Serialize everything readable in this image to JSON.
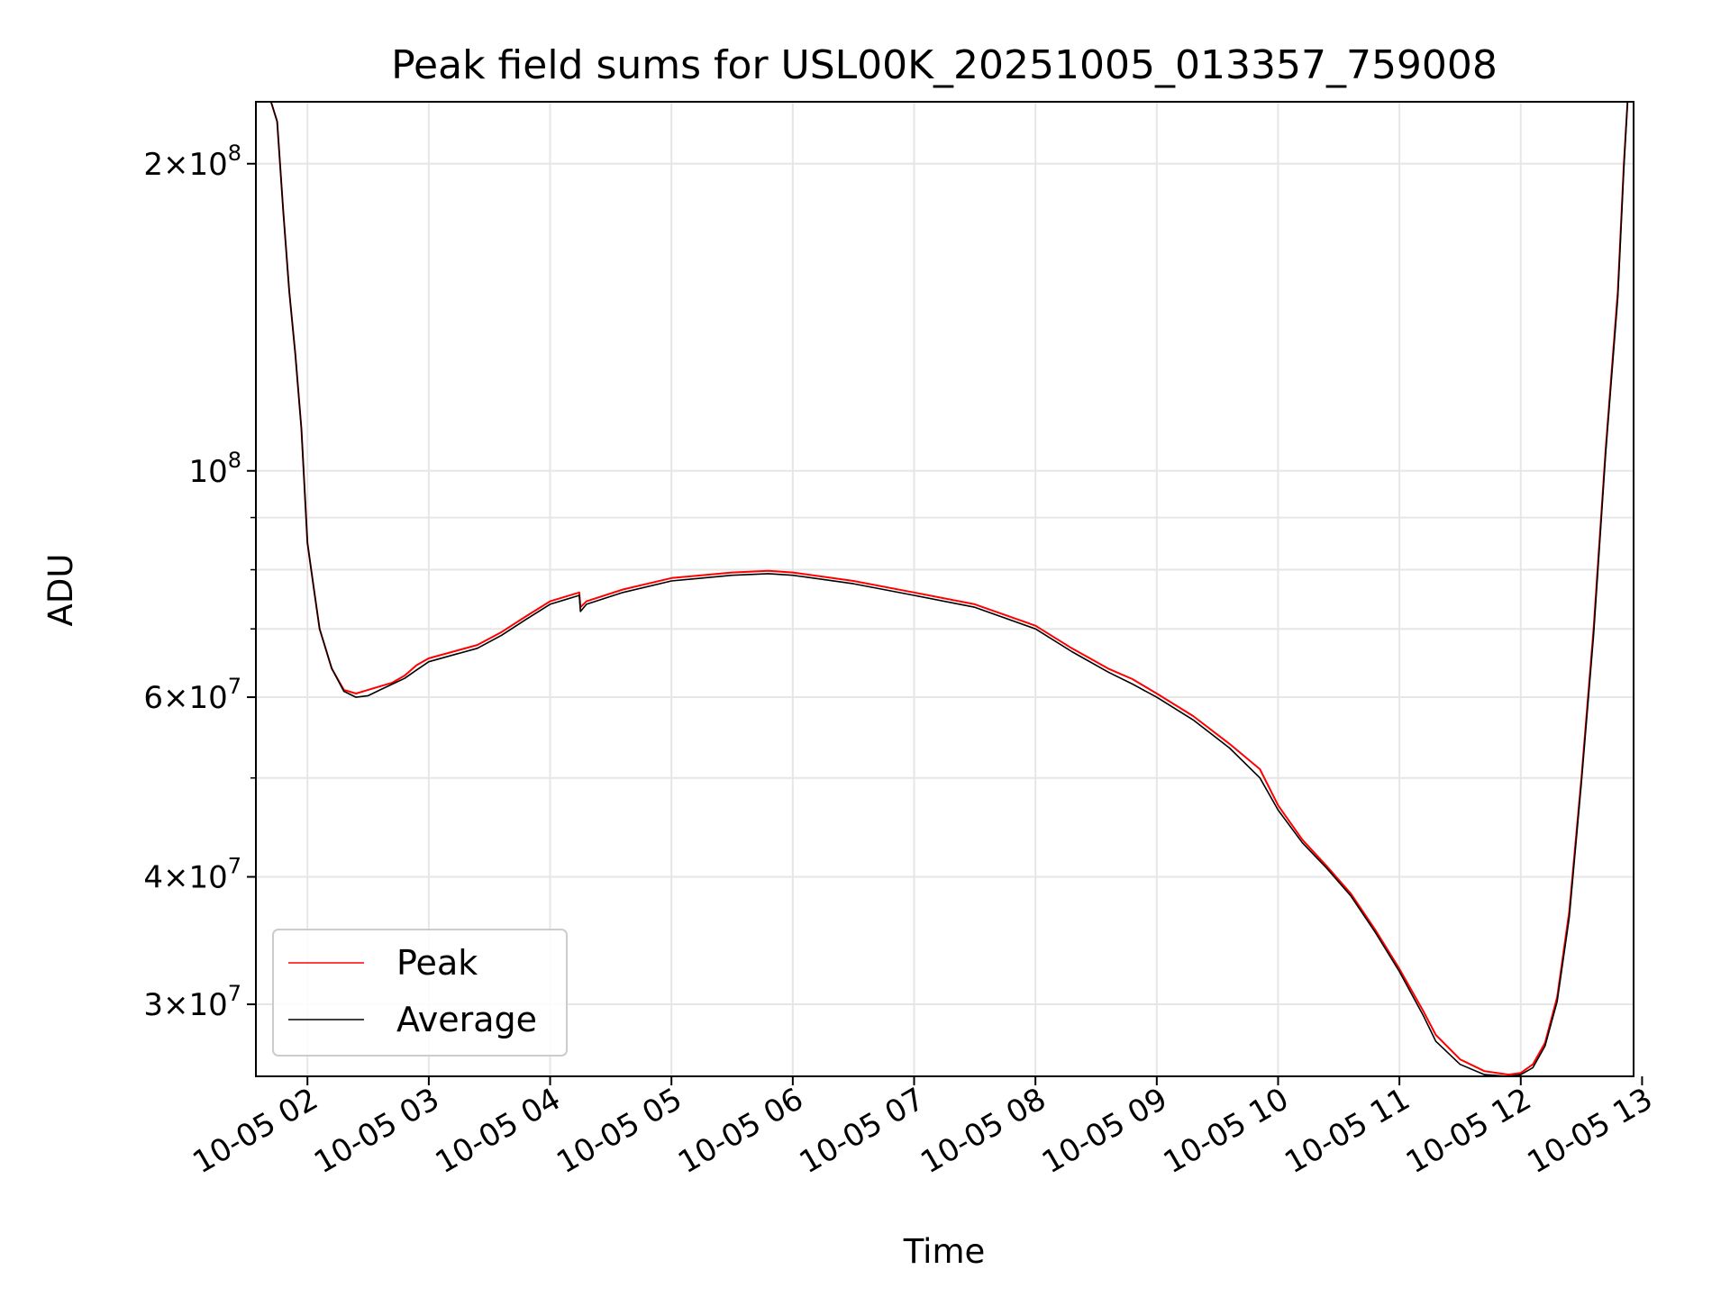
{
  "chart_data": {
    "type": "line",
    "title": "Peak field sums for USL00K_20251005_013357_759008",
    "xlabel": "Time",
    "ylabel": "ADU",
    "yscale": "log",
    "xlim": [
      1.575,
      12.93
    ],
    "ylim": [
      25500000,
      230000000
    ],
    "grid": true,
    "legend_position": "lower-left",
    "x_ticks": [
      {
        "value": 2,
        "label": "10-05 02"
      },
      {
        "value": 3,
        "label": "10-05 03"
      },
      {
        "value": 4,
        "label": "10-05 04"
      },
      {
        "value": 5,
        "label": "10-05 05"
      },
      {
        "value": 6,
        "label": "10-05 06"
      },
      {
        "value": 7,
        "label": "10-05 07"
      },
      {
        "value": 8,
        "label": "10-05 08"
      },
      {
        "value": 9,
        "label": "10-05 09"
      },
      {
        "value": 10,
        "label": "10-05 10"
      },
      {
        "value": 11,
        "label": "10-05 11"
      },
      {
        "value": 12,
        "label": "10-05 12"
      },
      {
        "value": 13,
        "label": "10-05 13"
      }
    ],
    "y_ticks": [
      {
        "value": 30000000,
        "mant": "3",
        "exp": "7"
      },
      {
        "value": 40000000,
        "mant": "4",
        "exp": "7"
      },
      {
        "value": 60000000,
        "mant": "6",
        "exp": "7"
      },
      {
        "value": 100000000,
        "mant": "",
        "exp": "8"
      },
      {
        "value": 200000000,
        "mant": "2",
        "exp": "8"
      }
    ],
    "y_minor_ticks": [
      50000000,
      70000000,
      80000000,
      90000000
    ],
    "series": [
      {
        "name": "Peak",
        "color": "#ff0000",
        "x": [
          1.7,
          1.75,
          1.8,
          1.85,
          1.9,
          1.95,
          2.0,
          2.05,
          2.1,
          2.2,
          2.3,
          2.4,
          2.5,
          2.6,
          2.7,
          2.8,
          2.9,
          3.0,
          3.2,
          3.4,
          3.6,
          3.8,
          4.0,
          4.24,
          4.25,
          4.3,
          4.6,
          5.0,
          5.5,
          5.8,
          6.0,
          6.5,
          7.0,
          7.5,
          8.0,
          8.3,
          8.6,
          8.8,
          9.0,
          9.3,
          9.6,
          9.85,
          10.0,
          10.2,
          10.4,
          10.6,
          10.8,
          11.0,
          11.2,
          11.3,
          11.5,
          11.7,
          11.9,
          12.0,
          12.1,
          12.2,
          12.3,
          12.4,
          12.5,
          12.6,
          12.7,
          12.8,
          12.85,
          12.88
        ],
        "y": [
          230000000,
          220000000,
          180000000,
          150000000,
          130000000,
          110000000,
          85000000,
          77000000,
          70000000,
          64000000,
          61000000,
          60500000,
          61000000,
          61500000,
          62000000,
          63000000,
          64500000,
          65500000,
          66500000,
          67500000,
          69500000,
          72000000,
          74500000,
          76000000,
          73500000,
          74500000,
          76500000,
          78500000,
          79500000,
          79800000,
          79500000,
          78000000,
          76000000,
          74000000,
          70500000,
          67000000,
          64000000,
          62500000,
          60500000,
          57500000,
          54000000,
          51000000,
          47000000,
          43500000,
          41000000,
          38500000,
          35500000,
          32500000,
          29500000,
          28000000,
          26500000,
          25800000,
          25600000,
          25700000,
          26200000,
          27500000,
          30500000,
          37000000,
          50000000,
          70000000,
          105000000,
          150000000,
          200000000,
          230000000
        ]
      },
      {
        "name": "Average",
        "color": "#000000",
        "x": [
          1.7,
          1.75,
          1.8,
          1.85,
          1.9,
          1.95,
          2.0,
          2.05,
          2.1,
          2.2,
          2.3,
          2.4,
          2.5,
          2.6,
          2.7,
          2.8,
          2.9,
          3.0,
          3.2,
          3.4,
          3.6,
          3.8,
          4.0,
          4.24,
          4.25,
          4.3,
          4.6,
          5.0,
          5.5,
          5.8,
          6.0,
          6.5,
          7.0,
          7.5,
          8.0,
          8.3,
          8.6,
          8.8,
          9.0,
          9.3,
          9.6,
          9.85,
          10.0,
          10.2,
          10.4,
          10.6,
          10.8,
          11.0,
          11.2,
          11.3,
          11.5,
          11.7,
          11.9,
          12.0,
          12.1,
          12.2,
          12.3,
          12.4,
          12.5,
          12.6,
          12.7,
          12.8,
          12.85,
          12.88
        ],
        "y": [
          230000000,
          220000000,
          180000000,
          150000000,
          130000000,
          110000000,
          85000000,
          77000000,
          70000000,
          64000000,
          60800000,
          60000000,
          60200000,
          61000000,
          61800000,
          62600000,
          63800000,
          65000000,
          66000000,
          67000000,
          69000000,
          71500000,
          74000000,
          75500000,
          72800000,
          74000000,
          76000000,
          78000000,
          79000000,
          79300000,
          79000000,
          77500000,
          75500000,
          73500000,
          70000000,
          66500000,
          63500000,
          61800000,
          60000000,
          57000000,
          53500000,
          50000000,
          46500000,
          43200000,
          40800000,
          38300000,
          35300000,
          32300000,
          29200000,
          27600000,
          26200000,
          25600000,
          25500000,
          25600000,
          26000000,
          27300000,
          30200000,
          36500000,
          49500000,
          69000000,
          104000000,
          148000000,
          198000000,
          230000000
        ]
      }
    ]
  }
}
